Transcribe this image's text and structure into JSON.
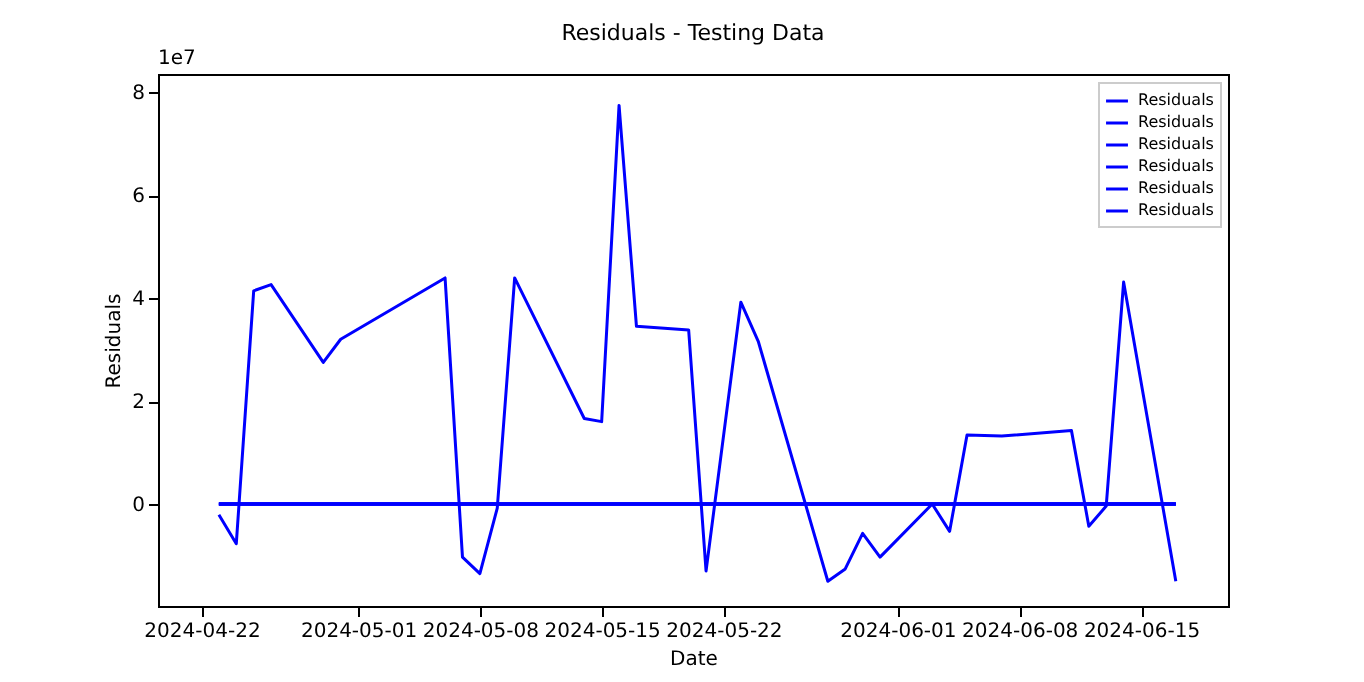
{
  "chart_data": {
    "type": "line",
    "title": "Residuals - Testing Data",
    "xlabel": "Date",
    "ylabel": "Residuals",
    "annotations": [
      "1e7"
    ],
    "xlim": [
      "2024-04-19T12:00",
      "2024-06-20T00:00"
    ],
    "xticks": [
      {
        "value": "2024-04-22",
        "label": "2024-04-22"
      },
      {
        "value": "2024-05-01",
        "label": "2024-05-01"
      },
      {
        "value": "2024-05-08",
        "label": "2024-05-08"
      },
      {
        "value": "2024-05-15",
        "label": "2024-05-15"
      },
      {
        "value": "2024-05-22",
        "label": "2024-05-22"
      },
      {
        "value": "2024-06-01",
        "label": "2024-06-01"
      },
      {
        "value": "2024-06-08",
        "label": "2024-06-08"
      },
      {
        "value": "2024-06-15",
        "label": "2024-06-15"
      }
    ],
    "ylim": [
      -1.98,
      8.35
    ],
    "yticks": [
      0,
      2,
      4,
      6,
      8
    ],
    "legend": "top right",
    "grid": false,
    "series": [
      {
        "name": "Residuals",
        "color": "#0000ff",
        "x": [
          "2024-04-23",
          "2024-04-24",
          "2024-04-25",
          "2024-04-26",
          "2024-04-29",
          "2024-04-30",
          "2024-05-06",
          "2024-05-07",
          "2024-05-08",
          "2024-05-09",
          "2024-05-10",
          "2024-05-14",
          "2024-05-15",
          "2024-05-16",
          "2024-05-17",
          "2024-05-20",
          "2024-05-21",
          "2024-05-23",
          "2024-05-24",
          "2024-05-28",
          "2024-05-29",
          "2024-05-30",
          "2024-05-31",
          "2024-06-03",
          "2024-06-04",
          "2024-06-05",
          "2024-06-07",
          "2024-06-11",
          "2024-06-12",
          "2024-06-13",
          "2024-06-14",
          "2024-06-17"
        ],
        "values": [
          -0.21,
          -0.77,
          4.14,
          4.26,
          2.75,
          3.2,
          4.39,
          -1.03,
          -1.35,
          -0.08,
          4.39,
          1.66,
          1.6,
          7.74,
          3.45,
          3.38,
          -1.3,
          3.92,
          3.16,
          -1.5,
          -1.26,
          -0.57,
          -1.03,
          0,
          -0.53,
          1.34,
          1.32,
          1.43,
          -0.43,
          -0.04,
          4.31,
          -1.5
        ]
      },
      {
        "name": "Residuals",
        "color": "#0000ff",
        "x": [
          "2024-04-23",
          "2024-06-17"
        ],
        "values": [
          0,
          0
        ]
      },
      {
        "name": "Residuals",
        "color": "#0000ff",
        "x": [
          "2024-04-23",
          "2024-06-17"
        ],
        "values": [
          0,
          0
        ]
      },
      {
        "name": "Residuals",
        "color": "#0000ff",
        "x": [
          "2024-04-23",
          "2024-06-17"
        ],
        "values": [
          0,
          0
        ]
      },
      {
        "name": "Residuals",
        "color": "#0000ff",
        "x": [
          "2024-04-23",
          "2024-06-17"
        ],
        "values": [
          0,
          0
        ]
      },
      {
        "name": "Residuals",
        "color": "#0000ff",
        "x": [
          "2024-04-23",
          "2024-06-17"
        ],
        "values": [
          0,
          0
        ]
      }
    ]
  }
}
